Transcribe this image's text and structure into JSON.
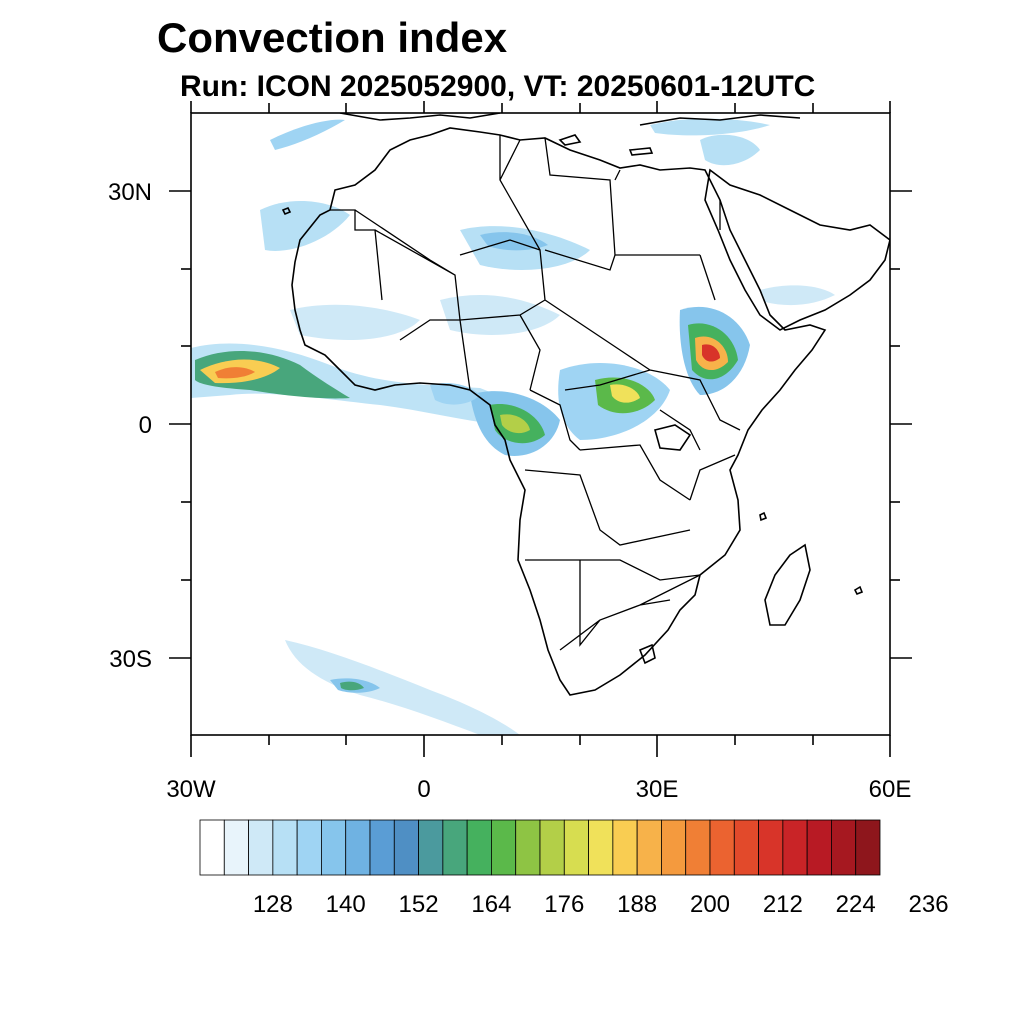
{
  "title": "Convection index",
  "subtitle": "Run: ICON 2025052900,  VT: 20250601-12UTC",
  "map": {
    "lon_range": [
      -30,
      60
    ],
    "lat_range": [
      -40,
      40
    ],
    "lon_labels": [
      {
        "lon": -30,
        "text": "30W"
      },
      {
        "lon": 0,
        "text": "0"
      },
      {
        "lon": 30,
        "text": "30E"
      },
      {
        "lon": 60,
        "text": "60E"
      }
    ],
    "lat_labels": [
      {
        "lat": 30,
        "text": "30N"
      },
      {
        "lat": 0,
        "text": "0"
      },
      {
        "lat": -30,
        "text": "30S"
      }
    ]
  },
  "colorbar": {
    "colors": [
      "#ffffff",
      "#e8f4fb",
      "#cfe9f7",
      "#b7e0f5",
      "#9fd4f3",
      "#86c5ec",
      "#6fb2e2",
      "#5a9dd5",
      "#4f8fc4",
      "#4b9a9e",
      "#48a67c",
      "#45b15e",
      "#5bb94a",
      "#8ec444",
      "#b3cf48",
      "#d7dd50",
      "#f0e15a",
      "#f9cd52",
      "#f7b24a",
      "#f49a3e",
      "#f07f35",
      "#eb6330",
      "#e24a2b",
      "#d83429",
      "#c92427",
      "#b81a24",
      "#a61820",
      "#8e161c"
    ],
    "labels": [
      "128",
      "140",
      "152",
      "164",
      "176",
      "188",
      "200",
      "212",
      "224",
      "236"
    ]
  }
}
